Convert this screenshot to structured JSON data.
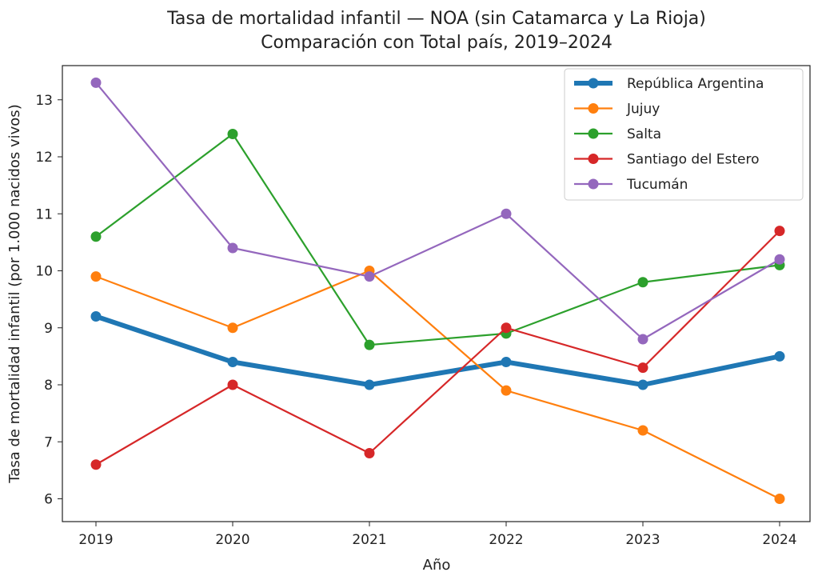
{
  "chart_data": {
    "type": "line",
    "title": "Tasa de mortalidad infantil — NOA (sin Catamarca y La Rioja)",
    "subtitle": "Comparación con Total país, 2019–2024",
    "xlabel": "Año",
    "ylabel": "Tasa de mortalidad infantil (por 1.000 nacidos vivos)",
    "x": [
      2019,
      2020,
      2021,
      2022,
      2023,
      2024
    ],
    "x_tick_labels": [
      "2019",
      "2020",
      "2021",
      "2022",
      "2023",
      "2024"
    ],
    "ylim": [
      5.6,
      13.6
    ],
    "y_ticks": [
      6,
      7,
      8,
      9,
      10,
      11,
      12,
      13
    ],
    "y_tick_labels": [
      "6",
      "7",
      "8",
      "9",
      "10",
      "11",
      "12",
      "13"
    ],
    "grid": false,
    "legend_position": "top-right",
    "series": [
      {
        "name": "República Argentina",
        "color": "#1f77b4",
        "thick": true,
        "values": [
          9.2,
          8.4,
          8.0,
          8.4,
          8.0,
          8.5
        ]
      },
      {
        "name": "Jujuy",
        "color": "#ff7f0e",
        "values": [
          9.9,
          9.0,
          10.0,
          7.9,
          7.2,
          6.0
        ]
      },
      {
        "name": "Salta",
        "color": "#2ca02c",
        "values": [
          10.6,
          12.4,
          8.7,
          8.9,
          9.8,
          10.1
        ]
      },
      {
        "name": "Santiago del Estero",
        "color": "#d62728",
        "values": [
          6.6,
          8.0,
          6.8,
          9.0,
          8.3,
          10.7
        ]
      },
      {
        "name": "Tucumán",
        "color": "#9467bd",
        "values": [
          13.3,
          10.4,
          9.9,
          11.0,
          8.8,
          10.2
        ]
      }
    ]
  }
}
